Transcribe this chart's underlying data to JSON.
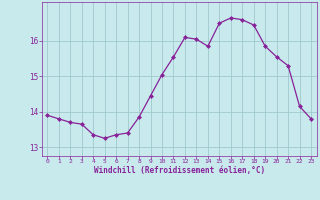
{
  "x": [
    0,
    1,
    2,
    3,
    4,
    5,
    6,
    7,
    8,
    9,
    10,
    11,
    12,
    13,
    14,
    15,
    16,
    17,
    18,
    19,
    20,
    21,
    22,
    23
  ],
  "y": [
    13.9,
    13.8,
    13.7,
    13.65,
    13.35,
    13.25,
    13.35,
    13.4,
    13.85,
    14.45,
    15.05,
    15.55,
    16.1,
    16.05,
    15.85,
    16.5,
    16.65,
    16.6,
    16.45,
    15.85,
    15.55,
    15.3,
    14.15,
    13.8
  ],
  "line_color": "#882299",
  "marker": "D",
  "markersize": 2.0,
  "bg_color": "#c8eaec",
  "grid_color": "#a0c8cc",
  "xlabel": "Windchill (Refroidissement éolien,°C)",
  "xlabel_color": "#882299",
  "tick_color": "#882299",
  "yticks": [
    13,
    14,
    15,
    16
  ],
  "xticks": [
    0,
    1,
    2,
    3,
    4,
    5,
    6,
    7,
    8,
    9,
    10,
    11,
    12,
    13,
    14,
    15,
    16,
    17,
    18,
    19,
    20,
    21,
    22,
    23
  ],
  "ylim": [
    12.75,
    17.1
  ],
  "xlim": [
    -0.5,
    23.5
  ]
}
